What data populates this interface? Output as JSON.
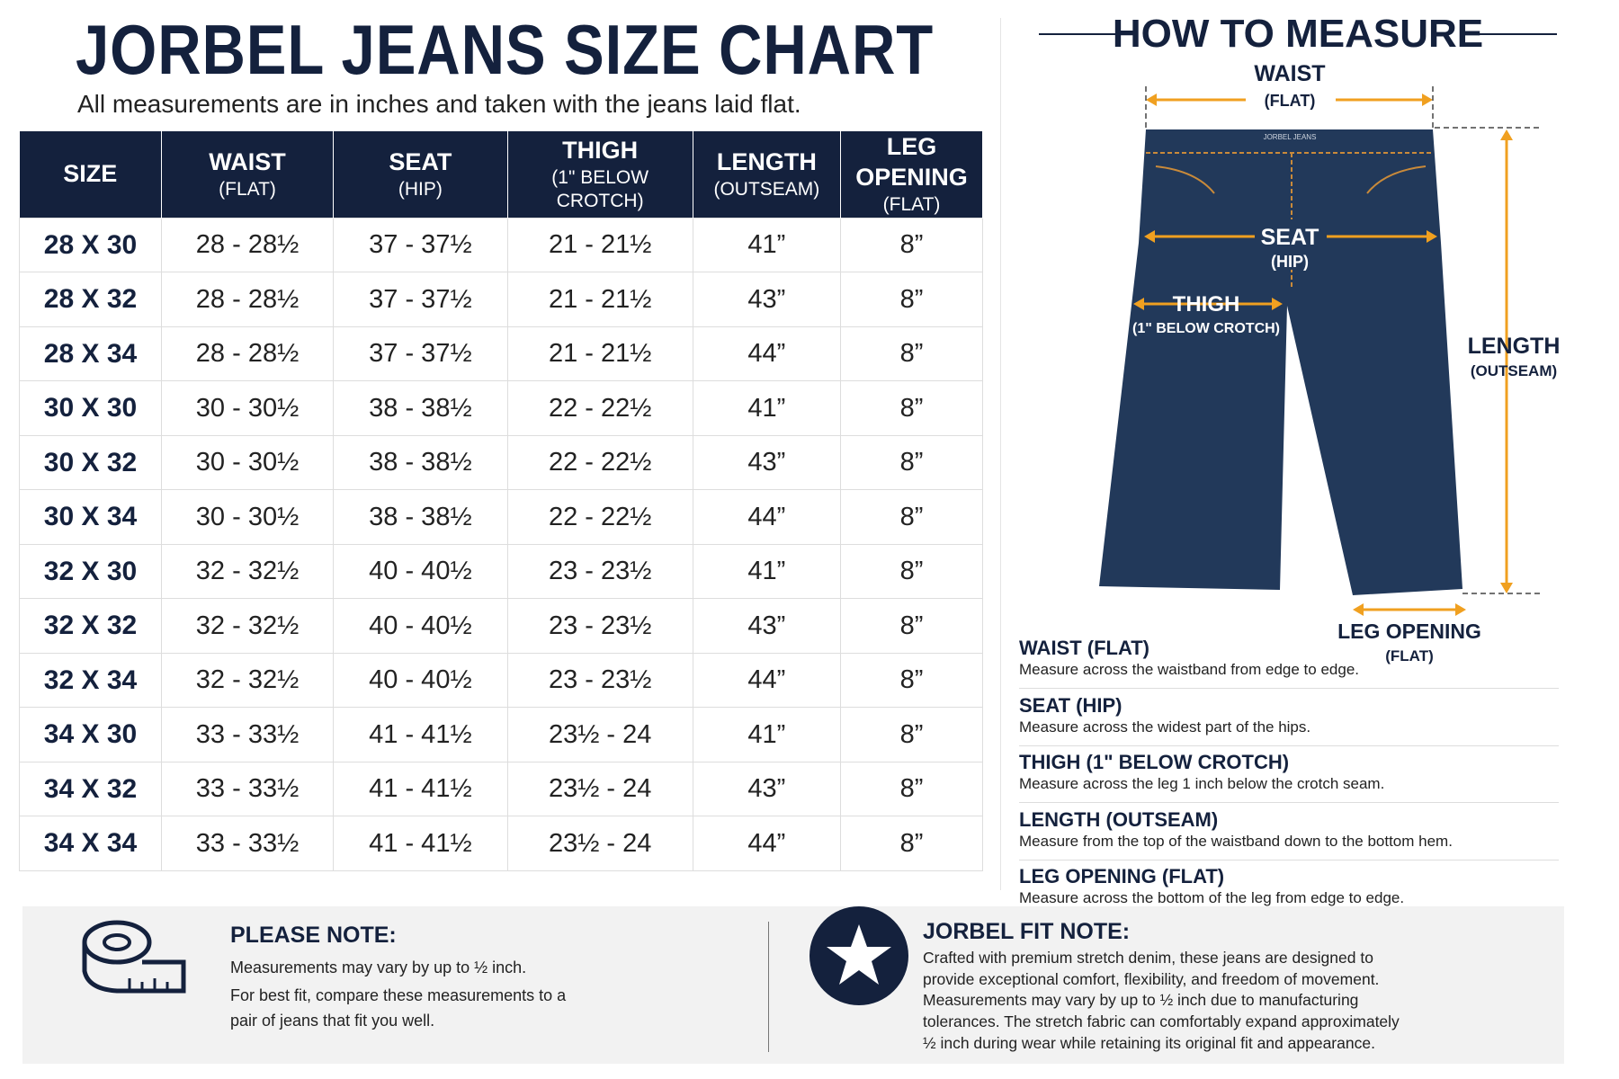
{
  "header": {
    "title": "JORBEL JEANS SIZE CHART",
    "subtitle": "All measurements are in inches and taken with the jeans laid flat."
  },
  "table": {
    "headers": [
      {
        "main": "SIZE"
      },
      {
        "main": "WAIST",
        "sub": "(FLAT)"
      },
      {
        "main": "SEAT",
        "sub": "(HIP)"
      },
      {
        "main": "THIGH",
        "sub": "(1\" BELOW CROTCH)"
      },
      {
        "main": "LENGTH",
        "sub": "(OUTSEAM)"
      },
      {
        "main": "LEG OPENING",
        "sub": "(FLAT)"
      }
    ],
    "rows": [
      [
        "28 X 30",
        "28 - 28½",
        "37 - 37½",
        "21 - 21½",
        "41”",
        "8”"
      ],
      [
        "28 X 32",
        "28 - 28½",
        "37 - 37½",
        "21 - 21½",
        "43”",
        "8”"
      ],
      [
        "28 X 34",
        "28 - 28½",
        "37 - 37½",
        "21 - 21½",
        "44”",
        "8”"
      ],
      [
        "30 X 30",
        "30 - 30½",
        "38 - 38½",
        "22 - 22½",
        "41”",
        "8”"
      ],
      [
        "30 X 32",
        "30 - 30½",
        "38 - 38½",
        "22 - 22½",
        "43”",
        "8”"
      ],
      [
        "30 X 34",
        "30 - 30½",
        "38 - 38½",
        "22 - 22½",
        "44”",
        "8”"
      ],
      [
        "32 X 30",
        "32 - 32½",
        "40 - 40½",
        "23 - 23½",
        "41”",
        "8”"
      ],
      [
        "32 X 32",
        "32 - 32½",
        "40 - 40½",
        "23 - 23½",
        "43”",
        "8”"
      ],
      [
        "32 X 34",
        "32 - 32½",
        "40 - 40½",
        "23 - 23½",
        "44”",
        "8”"
      ],
      [
        "34 X 30",
        "33 - 33½",
        "41 - 41½",
        "23½ - 24",
        "41”",
        "8”"
      ],
      [
        "34 X 32",
        "33 - 33½",
        "41 - 41½",
        "23½ - 24",
        "43”",
        "8”"
      ],
      [
        "34 X 34",
        "33 - 33½",
        "41 - 41½",
        "23½ - 24",
        "44”",
        "8”"
      ]
    ]
  },
  "measure": {
    "title": "HOW TO MEASURE",
    "brand": "JORBEL JEANS",
    "labels": {
      "waist": [
        "WAIST",
        "(FLAT)"
      ],
      "seat": [
        "SEAT",
        "(HIP)"
      ],
      "thigh": [
        "THIGH",
        "(1\" BELOW CROTCH)"
      ],
      "length": [
        "LENGTH",
        "(OUTSEAM)"
      ],
      "leg": [
        "LEG OPENING",
        "(FLAT)"
      ]
    },
    "items": [
      {
        "title": "WAIST (FLAT)",
        "text": "Measure across the waistband from edge to edge."
      },
      {
        "title": "SEAT (HIP)",
        "text": "Measure across the widest part of the hips."
      },
      {
        "title": "THIGH (1\" BELOW CROTCH)",
        "text": "Measure across the leg 1 inch below the crotch seam."
      },
      {
        "title": "LENGTH (OUTSEAM)",
        "text": "Measure from the top of the waistband down to the bottom hem."
      },
      {
        "title": "LEG OPENING (FLAT)",
        "text": "Measure across the bottom of the leg from edge to edge."
      }
    ]
  },
  "notes": [
    {
      "title": "PLEASE NOTE:",
      "lines": [
        "Measurements may vary by up to ½ inch.",
        "For best fit, compare these measurements to a",
        "pair of jeans that fit you well."
      ]
    },
    {
      "title": "JORBEL FIT NOTE:",
      "lines": [
        "Crafted with premium stretch denim, these jeans are designed to",
        "provide exceptional comfort, flexibility, and freedom of movement.",
        "Measurements may vary by up to ½ inch due to manufacturing",
        "tolerances. The stretch fabric can comfortably expand approximately",
        "½ inch during wear while retaining its original fit and appearance."
      ]
    }
  ]
}
